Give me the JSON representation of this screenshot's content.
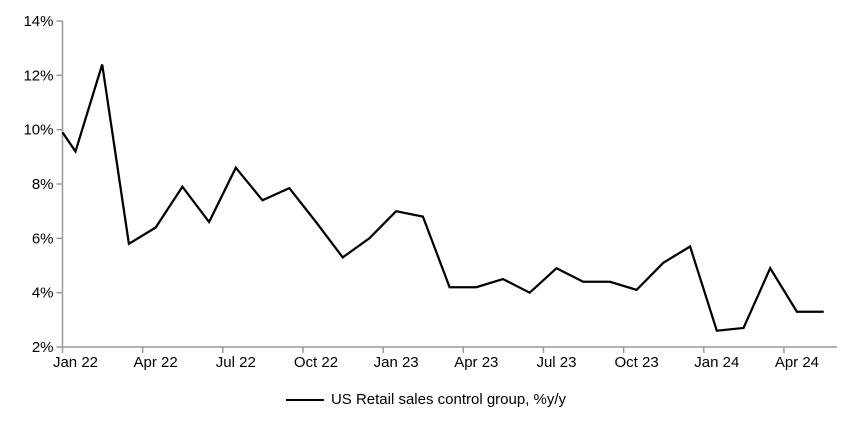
{
  "chart_data": {
    "type": "line",
    "legend_label": "US Retail sales control group, %y/y",
    "legend_position": "bottom-center",
    "grid": false,
    "background_color": "#ffffff",
    "axis_color": "#9a9a9a",
    "line_color": "#000000",
    "ylim": [
      2,
      14
    ],
    "ytick_values": [
      2,
      4,
      6,
      8,
      10,
      12,
      14
    ],
    "ytick_labels": [
      "2%",
      "4%",
      "6%",
      "8%",
      "10%",
      "12%",
      "14%"
    ],
    "xtick_labels": [
      "Jan 22",
      "Apr 22",
      "Jul 22",
      "Oct 22",
      "Jan 23",
      "Apr 23",
      "Jul 23",
      "Oct 23",
      "Jan 24",
      "Apr 24"
    ],
    "xtick_month_indices": [
      0,
      3,
      6,
      9,
      12,
      15,
      18,
      21,
      24,
      27
    ],
    "clipped_start_value": 9.9,
    "x": [
      "Jan 22",
      "Feb 22",
      "Mar 22",
      "Apr 22",
      "May 22",
      "Jun 22",
      "Jul 22",
      "Aug 22",
      "Sep 22",
      "Oct 22",
      "Nov 22",
      "Dec 22",
      "Jan 23",
      "Feb 23",
      "Mar 23",
      "Apr 23",
      "May 23",
      "Jun 23",
      "Jul 23",
      "Aug 23",
      "Sep 23",
      "Oct 23",
      "Nov 23",
      "Dec 23",
      "Jan 24",
      "Feb 24",
      "Mar 24",
      "Apr 24",
      "May 24"
    ],
    "series": [
      {
        "name": "US Retail sales control group, %y/y",
        "values": [
          9.2,
          12.4,
          5.8,
          6.4,
          7.9,
          6.6,
          8.6,
          7.4,
          7.85,
          6.6,
          5.3,
          6.0,
          7.0,
          6.8,
          4.2,
          4.2,
          4.5,
          4.0,
          4.9,
          4.4,
          4.4,
          4.1,
          5.1,
          5.7,
          2.6,
          2.7,
          4.9,
          3.3,
          3.3
        ]
      }
    ]
  }
}
